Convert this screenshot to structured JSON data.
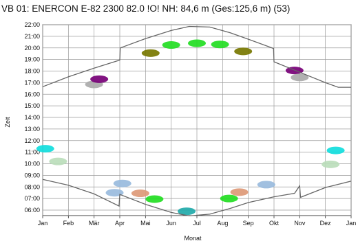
{
  "chart_data": {
    "type": "scatter",
    "title": "VB 01: ENERCON E-82 2300 82.0 !O! NH: 84,6 m (Ges:125,6 m) (53)",
    "xlabel": "Monat",
    "ylabel": "Zeit",
    "x_ticks": [
      "Jan",
      "Feb",
      "Mär",
      "Apr",
      "Mai",
      "Jun",
      "Jul",
      "Aug",
      "Sep",
      "Okt",
      "Nov",
      "Dez",
      "Jan"
    ],
    "y_ticks": [
      "06:00",
      "07:00",
      "08:00",
      "09:00",
      "10:00",
      "11:00",
      "12:00",
      "13:00",
      "14:00",
      "15:00",
      "16:00",
      "17:00",
      "18:00",
      "19:00",
      "20:00",
      "21:00",
      "22:00"
    ],
    "xlim": [
      0,
      12
    ],
    "ylim": [
      5.5,
      22
    ],
    "grid": true,
    "series": [
      {
        "values": [
          [
            0.0,
            16.65
          ],
          [
            1.0,
            17.5
          ],
          [
            2.0,
            18.25
          ],
          [
            3.0,
            18.95
          ],
          [
            3.02,
            20.0
          ],
          [
            4.0,
            20.8
          ],
          [
            5.0,
            21.5
          ],
          [
            5.7,
            21.85
          ],
          [
            6.5,
            21.8
          ],
          [
            7.3,
            21.3
          ],
          [
            8.0,
            20.75
          ],
          [
            8.98,
            19.95
          ],
          [
            9.0,
            18.8
          ],
          [
            10.0,
            17.9
          ],
          [
            11.0,
            17.0
          ],
          [
            11.5,
            16.6
          ],
          [
            12.0,
            16.6
          ]
        ]
      },
      {
        "values": [
          [
            0.0,
            8.65
          ],
          [
            1.0,
            8.15
          ],
          [
            2.0,
            7.4
          ],
          [
            2.97,
            6.35
          ],
          [
            3.0,
            7.35
          ],
          [
            4.0,
            6.5
          ],
          [
            5.0,
            5.8
          ],
          [
            5.7,
            5.5
          ],
          [
            6.5,
            5.65
          ],
          [
            7.3,
            6.15
          ],
          [
            8.0,
            6.65
          ],
          [
            9.0,
            7.15
          ],
          [
            9.8,
            7.45
          ],
          [
            10.0,
            8.1
          ],
          [
            10.03,
            7.1
          ],
          [
            11.0,
            7.95
          ],
          [
            12.0,
            8.5
          ]
        ]
      }
    ],
    "shadow_periods": [
      {
        "color": "#aaaaaa",
        "values": [
          [
            2.0,
            16.85
          ]
        ]
      },
      {
        "color": "#770077",
        "values": [
          [
            2.2,
            17.3
          ]
        ]
      },
      {
        "color": "#777700",
        "values": [
          [
            4.2,
            19.55
          ]
        ]
      },
      {
        "color": "#22dd22",
        "values": [
          [
            5.0,
            20.25
          ],
          [
            6.0,
            20.4
          ],
          [
            6.9,
            20.3
          ]
        ]
      },
      {
        "color": "#777700",
        "values": [
          [
            7.8,
            19.7
          ]
        ]
      },
      {
        "color": "#770077",
        "values": [
          [
            9.8,
            18.05
          ]
        ]
      },
      {
        "color": "#aaaaaa",
        "values": [
          [
            10.0,
            17.45
          ]
        ]
      },
      {
        "color": "#11dddd",
        "values": [
          [
            0.1,
            11.3
          ]
        ]
      },
      {
        "color": "#bbddbb",
        "values": [
          [
            0.6,
            10.2
          ]
        ]
      },
      {
        "color": "#11dddd",
        "values": [
          [
            11.4,
            11.15
          ]
        ]
      },
      {
        "color": "#bbddbb",
        "values": [
          [
            11.2,
            9.95
          ]
        ]
      },
      {
        "color": "#99bbdd",
        "values": [
          [
            3.1,
            8.3
          ]
        ]
      },
      {
        "color": "#99bbdd",
        "values": [
          [
            2.8,
            7.5
          ]
        ]
      },
      {
        "color": "#dd9977",
        "values": [
          [
            3.8,
            7.45
          ]
        ]
      },
      {
        "color": "#22dd22",
        "values": [
          [
            4.35,
            6.95
          ]
        ]
      },
      {
        "color": "#22aaaa",
        "values": [
          [
            5.6,
            5.9
          ]
        ]
      },
      {
        "color": "#22dd22",
        "values": [
          [
            7.25,
            7.0
          ]
        ]
      },
      {
        "color": "#dd9977",
        "values": [
          [
            7.65,
            7.55
          ]
        ]
      },
      {
        "color": "#99bbdd",
        "values": [
          [
            8.7,
            8.2
          ]
        ]
      }
    ]
  }
}
